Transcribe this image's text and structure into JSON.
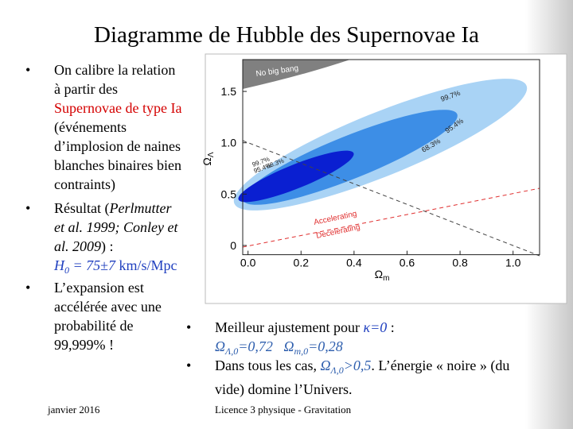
{
  "title": "Diagramme de Hubble des Supernovae Ia",
  "left_bullets": [
    {
      "parts": [
        "On calibre la relation",
        "à partir des",
        "Supernovae de type Ia",
        "(événements",
        "d’implosion de naines",
        "blanches binaires bien",
        "contraints)"
      ]
    },
    {
      "parts": [
        "Résultat (",
        "Perlmutter",
        "et al. 1999; Conley et",
        "al. 2009",
        ") :",
        "H",
        "0",
        " = 75",
        "±",
        "7",
        " km/s/Mpc"
      ]
    },
    {
      "parts": [
        "L’expansion est",
        "accélérée avec une",
        "probabilité de",
        "99,999% !"
      ]
    }
  ],
  "figure": {
    "xlim": [
      -0.02,
      1.1
    ],
    "ylim": [
      -0.09,
      1.81
    ],
    "xticks": [
      {
        "value": 0,
        "label": "0.0"
      },
      0.2,
      0.4,
      0.6,
      0.8,
      {
        "value": 1,
        "label": "1.0"
      }
    ],
    "yticks": [
      0,
      0.5,
      {
        "value": 1,
        "label": "1.0"
      },
      1.5
    ],
    "xlabel": {
      "symbol": "Ω",
      "subscript": "m"
    },
    "ylabel": {
      "symbol": "Ω",
      "subscript": "Λ"
    },
    "region_label": "No big bang",
    "contour_labels": [
      "99.7%",
      "95.4%",
      "68.3%",
      "99.7%",
      "95.4%",
      "68.3%"
    ],
    "line_labels": [
      "Accelerating",
      "Decelerating"
    ]
  },
  "right_bullets": [
    {
      "parts": [
        "Meilleur ajustement pour ",
        "κ=0",
        " :",
        "Ω",
        "Λ,0",
        "=0,72",
        "Ω",
        "m,0",
        "=0,28"
      ]
    },
    {
      "parts": [
        "Dans tous les cas, ",
        "Ω",
        "Λ,0",
        ">0,5",
        ". L’énergie « noire » (du",
        "vide) domine l’Univers."
      ]
    }
  ],
  "footer": {
    "date": "janvier 2016",
    "course": "Licence 3 physique - Gravitation"
  }
}
